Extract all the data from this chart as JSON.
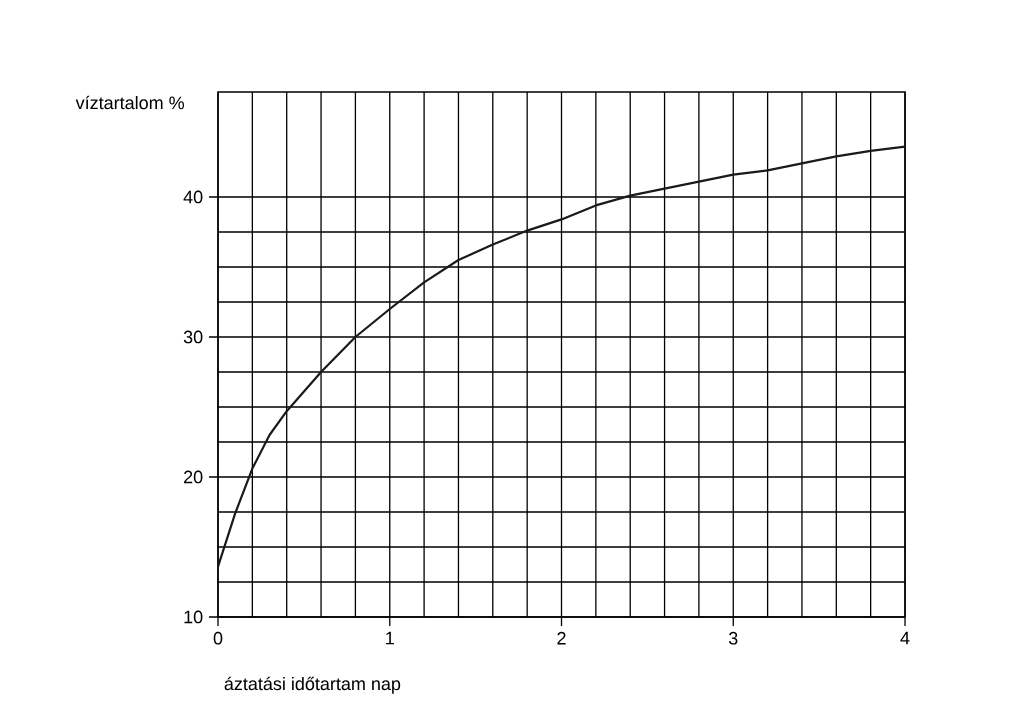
{
  "chart_data": {
    "type": "line",
    "xlabel": "áztatási időtartam nap",
    "ylabel": "víztartalom %",
    "x": [
      0,
      0.1,
      0.2,
      0.3,
      0.4,
      0.6,
      0.8,
      1.0,
      1.2,
      1.4,
      1.6,
      1.8,
      2.0,
      2.2,
      2.4,
      2.6,
      2.8,
      3.0,
      3.2,
      3.4,
      3.6,
      3.8,
      4.0
    ],
    "values": [
      13.6,
      17.4,
      20.6,
      23.0,
      24.7,
      27.5,
      30.0,
      32.0,
      33.9,
      35.5,
      36.6,
      37.6,
      38.4,
      39.4,
      40.1,
      40.6,
      41.1,
      41.6,
      41.9,
      42.4,
      42.9,
      43.3,
      43.6
    ],
    "color": "#1a1a1a",
    "xlim": [
      0,
      4
    ],
    "ylim": [
      10,
      47.5
    ],
    "xticks": [
      0,
      1,
      2,
      3,
      4
    ],
    "yticks": [
      10,
      20,
      30,
      40
    ],
    "grid": true,
    "line_style": "solid"
  }
}
